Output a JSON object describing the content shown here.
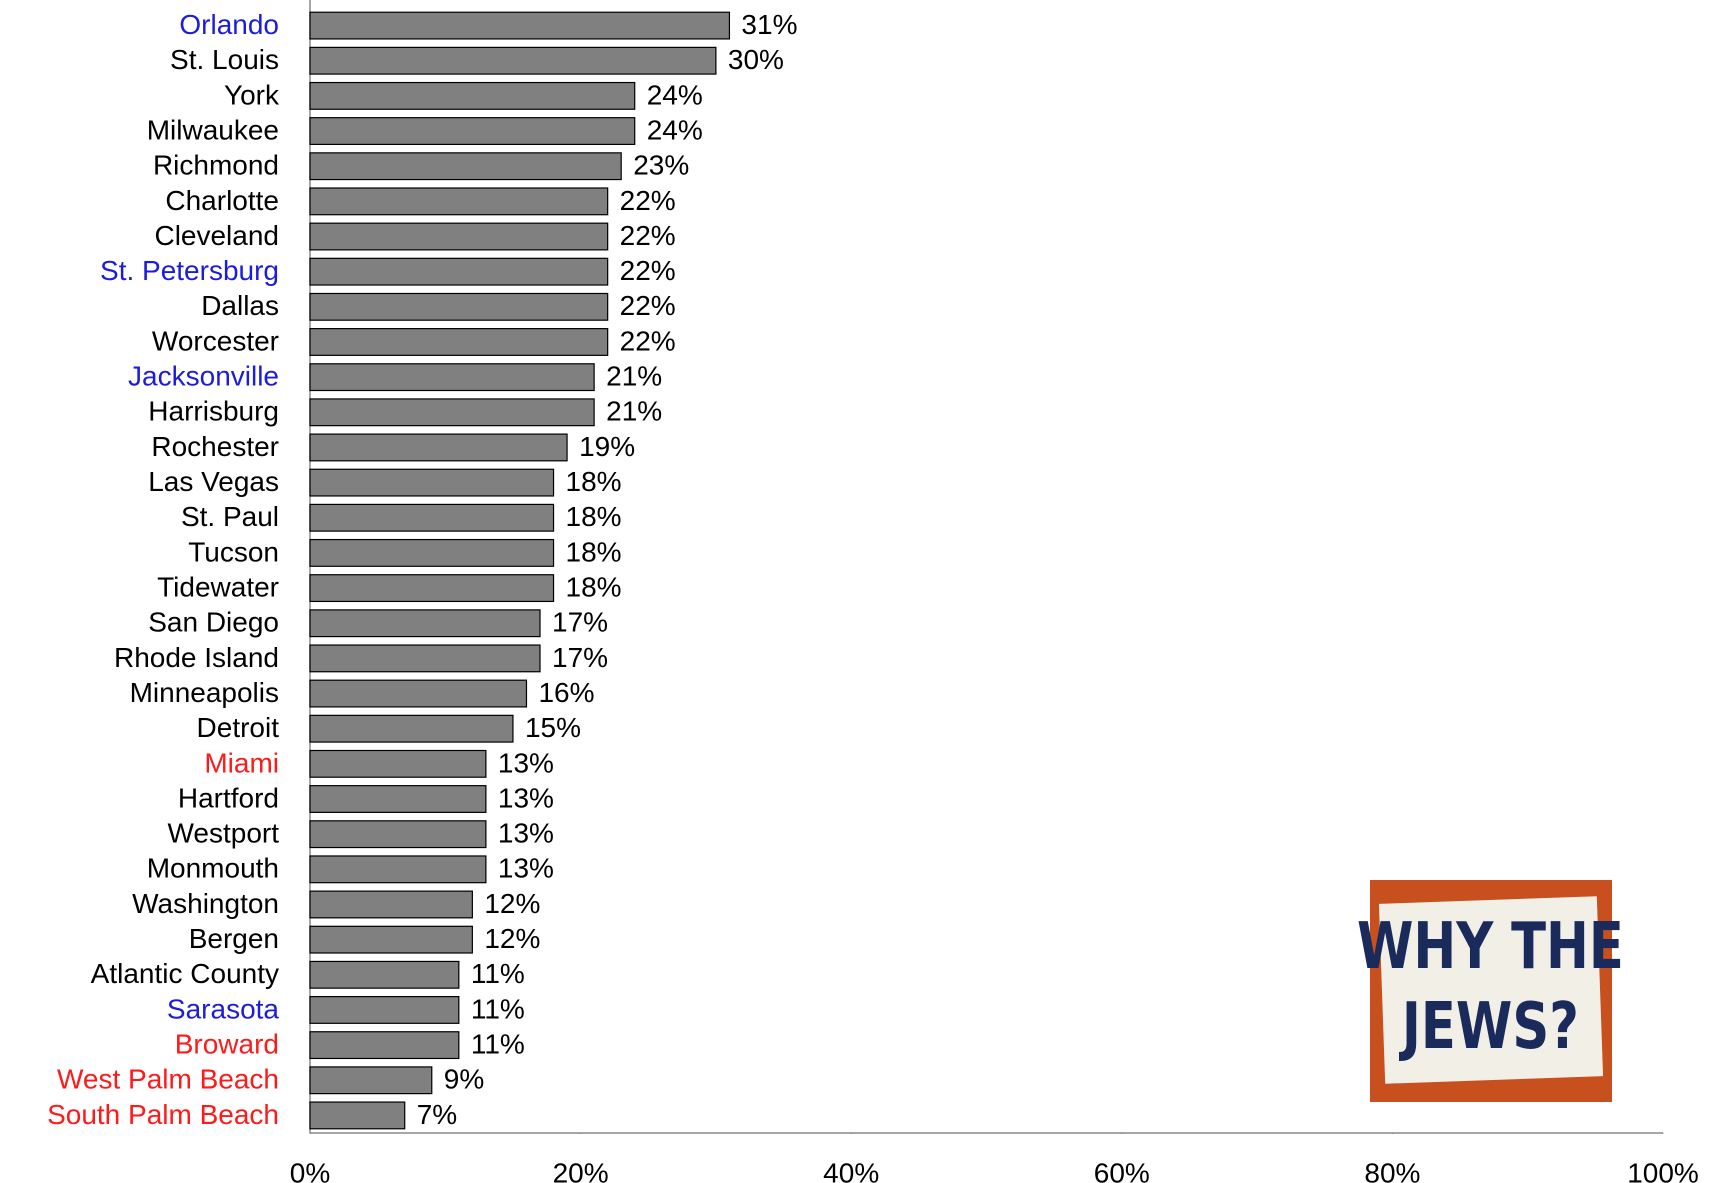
{
  "chart_data": {
    "type": "bar",
    "orientation": "horizontal",
    "categories": [
      "Orlando",
      "St. Louis",
      "York",
      "Milwaukee",
      "Richmond",
      "Charlotte",
      "Cleveland",
      "St. Petersburg",
      "Dallas",
      "Worcester",
      "Jacksonville",
      "Harrisburg",
      "Rochester",
      "Las Vegas",
      "St. Paul",
      "Tucson",
      "Tidewater",
      "San Diego",
      "Rhode Island",
      "Minneapolis",
      "Detroit",
      "Miami",
      "Hartford",
      "Westport",
      "Monmouth",
      "Washington",
      "Bergen",
      "Atlantic County",
      "Sarasota",
      "Broward",
      "West Palm Beach",
      "South Palm Beach"
    ],
    "category_colors": [
      "#1c1cdc",
      "#000000",
      "#000000",
      "#000000",
      "#000000",
      "#000000",
      "#000000",
      "#1c1cdc",
      "#000000",
      "#000000",
      "#1c1cdc",
      "#000000",
      "#000000",
      "#000000",
      "#000000",
      "#000000",
      "#000000",
      "#000000",
      "#000000",
      "#000000",
      "#000000",
      "#ff1a1a",
      "#000000",
      "#000000",
      "#000000",
      "#000000",
      "#000000",
      "#000000",
      "#1c1cdc",
      "#ff1a1a",
      "#ff1a1a",
      "#ff1a1a"
    ],
    "values": [
      31,
      30,
      24,
      24,
      23,
      22,
      22,
      22,
      22,
      22,
      21,
      21,
      19,
      18,
      18,
      18,
      18,
      17,
      17,
      16,
      15,
      13,
      13,
      13,
      13,
      12,
      12,
      11,
      11,
      11,
      9,
      7
    ],
    "value_labels": [
      "31%",
      "30%",
      "24%",
      "24%",
      "23%",
      "22%",
      "22%",
      "22%",
      "22%",
      "22%",
      "21%",
      "21%",
      "19%",
      "18%",
      "18%",
      "18%",
      "18%",
      "17%",
      "17%",
      "16%",
      "15%",
      "13%",
      "13%",
      "13%",
      "13%",
      "12%",
      "12%",
      "11%",
      "11%",
      "11%",
      "9%",
      "7%"
    ],
    "color": "#808080",
    "xlim": [
      0,
      100
    ],
    "xticks": [
      {
        "value": 0,
        "label": "0%"
      },
      {
        "value": 20,
        "label": "20%"
      },
      {
        "value": 40,
        "label": "40%"
      },
      {
        "value": 60,
        "label": "60%"
      },
      {
        "value": 80,
        "label": "80%"
      },
      {
        "value": 100,
        "label": "100%"
      }
    ],
    "image_text": [
      "WHY THE",
      "JEWS?"
    ]
  }
}
